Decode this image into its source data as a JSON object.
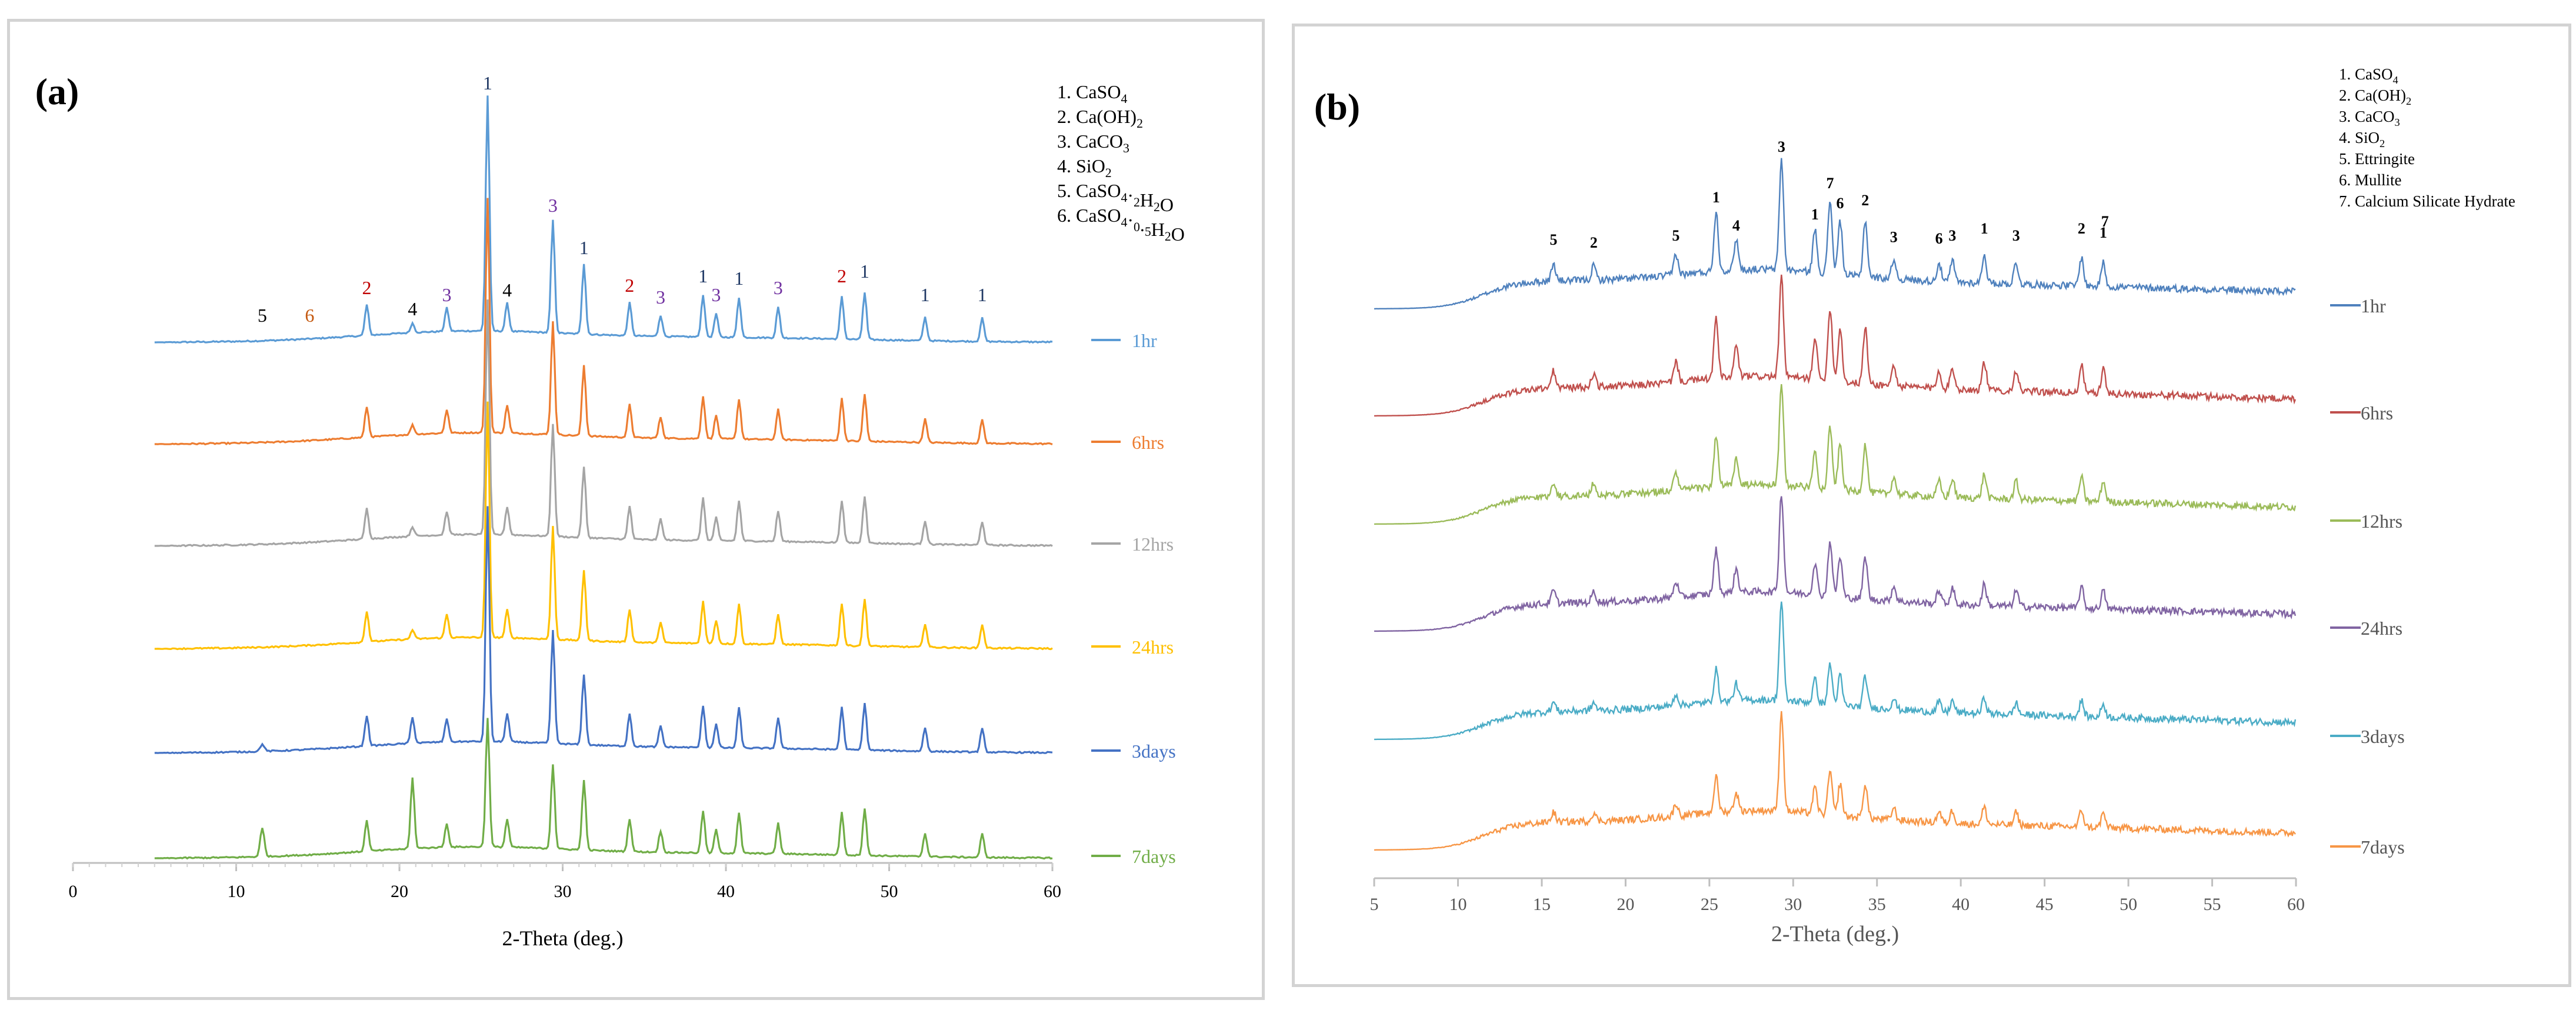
{
  "chart_data": [
    {
      "type": "line",
      "panel_label": "(a)",
      "xlabel": "2-Theta (deg.)",
      "ylabel": "",
      "xlim": [
        0,
        60
      ],
      "x_ticks": [
        "0",
        "10",
        "20",
        "30",
        "40",
        "50",
        "60"
      ],
      "legend_items": [
        "1. CaSO4",
        "2. Ca(OH)2",
        "3. CaCO3",
        "4. SiO2",
        "5. CaSO4·2H2O",
        "6. CaSO4·0.5H2O"
      ],
      "series": [
        {
          "name": "1hr",
          "color": "#5b9bd5"
        },
        {
          "name": "6hrs",
          "color": "#ed7d31"
        },
        {
          "name": "12hrs",
          "color": "#a5a5a5"
        },
        {
          "name": "24hrs",
          "color": "#ffc000"
        },
        {
          "name": "3days",
          "color": "#4472c4"
        },
        {
          "name": "7days",
          "color": "#70ad47"
        }
      ],
      "peaks": [
        {
          "x": 25.4,
          "h": 1.0,
          "label": "1",
          "color": "#1f3864"
        },
        {
          "x": 29.4,
          "h": 0.48,
          "label": "3",
          "color": "#7030a0"
        },
        {
          "x": 31.3,
          "h": 0.3,
          "label": "1",
          "color": "#1f3864"
        },
        {
          "x": 26.6,
          "h": 0.12,
          "label": "4",
          "color": "#000000"
        },
        {
          "x": 22.9,
          "h": 0.1,
          "label": "3",
          "color": "#7030a0"
        },
        {
          "x": 20.8,
          "h": 0.04,
          "label": "4",
          "color": "#000000"
        },
        {
          "x": 18.0,
          "h": 0.13,
          "label": "2",
          "color": "#c00000"
        },
        {
          "x": 14.5,
          "h": 0.0,
          "label": "6",
          "color": "#c55a11"
        },
        {
          "x": 11.6,
          "h": 0.0,
          "label": "5",
          "color": "#000000"
        },
        {
          "x": 34.1,
          "h": 0.14,
          "label": "2",
          "color": "#c00000"
        },
        {
          "x": 36.0,
          "h": 0.09,
          "label": "3",
          "color": "#7030a0"
        },
        {
          "x": 38.6,
          "h": 0.18,
          "label": "1",
          "color": "#1f3864"
        },
        {
          "x": 39.4,
          "h": 0.1,
          "label": "3",
          "color": "#7030a0"
        },
        {
          "x": 40.8,
          "h": 0.17,
          "label": "1",
          "color": "#1f3864"
        },
        {
          "x": 43.2,
          "h": 0.13,
          "label": "3",
          "color": "#7030a0"
        },
        {
          "x": 47.1,
          "h": 0.18,
          "label": "2",
          "color": "#c00000"
        },
        {
          "x": 48.5,
          "h": 0.2,
          "label": "1",
          "color": "#1f3864"
        },
        {
          "x": 52.2,
          "h": 0.1,
          "label": "1",
          "color": "#1f3864"
        },
        {
          "x": 55.7,
          "h": 0.1,
          "label": "1",
          "color": "#1f3864"
        }
      ]
    },
    {
      "type": "line",
      "panel_label": "(b)",
      "xlabel": "2-Theta (deg.)",
      "ylabel": "",
      "xlim": [
        5,
        60
      ],
      "x_ticks": [
        "5",
        "10",
        "15",
        "20",
        "25",
        "30",
        "35",
        "40",
        "45",
        "50",
        "55",
        "60"
      ],
      "legend_items": [
        "1. CaSO4",
        "2. Ca(OH)2",
        "3. CaCO3",
        "4. SiO2",
        "5. Ettringite",
        "6. Mullite",
        "7. Calcium Silicate Hydrate"
      ],
      "series": [
        {
          "name": "1hr",
          "color": "#4f81bd"
        },
        {
          "name": "6hrs",
          "color": "#c0504d"
        },
        {
          "name": "12hrs",
          "color": "#9bbb59"
        },
        {
          "name": "24hrs",
          "color": "#8064a2"
        },
        {
          "name": "3days",
          "color": "#4bacc6"
        },
        {
          "name": "7days",
          "color": "#f79646"
        }
      ],
      "peaks": [
        {
          "x": 15.7,
          "h": 0.12,
          "label": "5"
        },
        {
          "x": 18.1,
          "h": 0.1,
          "label": "2"
        },
        {
          "x": 23.0,
          "h": 0.15,
          "label": "5"
        },
        {
          "x": 25.4,
          "h": 0.42,
          "label": "1"
        },
        {
          "x": 26.6,
          "h": 0.22,
          "label": "4"
        },
        {
          "x": 29.3,
          "h": 0.78,
          "label": "3"
        },
        {
          "x": 31.3,
          "h": 0.3,
          "label": "1"
        },
        {
          "x": 32.2,
          "h": 0.52,
          "label": "7"
        },
        {
          "x": 32.8,
          "h": 0.38,
          "label": "6"
        },
        {
          "x": 34.3,
          "h": 0.4,
          "label": "2"
        },
        {
          "x": 36.0,
          "h": 0.14,
          "label": "3"
        },
        {
          "x": 38.7,
          "h": 0.13,
          "label": "6"
        },
        {
          "x": 39.5,
          "h": 0.15,
          "label": "3"
        },
        {
          "x": 41.4,
          "h": 0.2,
          "label": "1"
        },
        {
          "x": 43.3,
          "h": 0.15,
          "label": "3"
        },
        {
          "x": 47.2,
          "h": 0.2,
          "label": "2"
        },
        {
          "x": 48.5,
          "h": 0.17,
          "label": "1"
        },
        {
          "x": 48.6,
          "h": 0.0,
          "label": "7"
        }
      ]
    }
  ]
}
